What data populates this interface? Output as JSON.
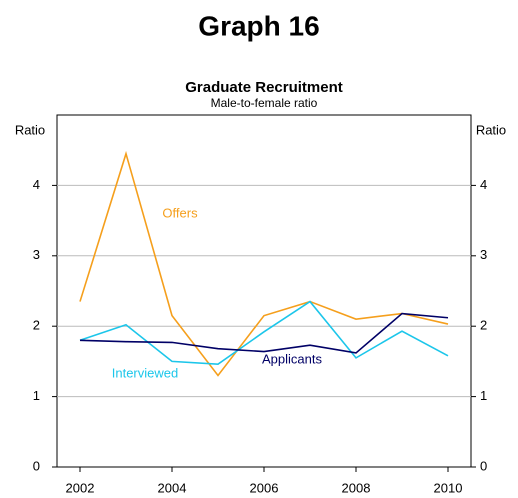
{
  "page_title": "Graph 16",
  "chart_data": {
    "type": "line",
    "title": "Graduate Recruitment",
    "subtitle": "Male-to-female ratio",
    "ylabel": "Ratio",
    "y2label": "Ratio",
    "x": [
      2002,
      2003,
      2004,
      2005,
      2006,
      2007,
      2008,
      2009,
      2010
    ],
    "xlim": [
      2001.5,
      2010.5
    ],
    "xticks": [
      2002,
      2004,
      2006,
      2008,
      2010
    ],
    "ylim": [
      0,
      5
    ],
    "yticks": [
      0,
      1,
      2,
      3,
      4
    ],
    "grid": true,
    "series": [
      {
        "name": "Offers",
        "color": "#f59f1c",
        "values": [
          2.35,
          4.45,
          2.15,
          1.3,
          2.15,
          2.35,
          2.1,
          2.18,
          2.03
        ]
      },
      {
        "name": "Interviewed",
        "color": "#1cc6ea",
        "values": [
          1.8,
          2.02,
          1.5,
          1.46,
          1.92,
          2.35,
          1.55,
          1.93,
          1.58
        ]
      },
      {
        "name": "Applicants",
        "color": "#000066",
        "values": [
          1.8,
          1.78,
          1.77,
          1.68,
          1.64,
          1.73,
          1.62,
          2.18,
          2.12
        ]
      }
    ]
  }
}
